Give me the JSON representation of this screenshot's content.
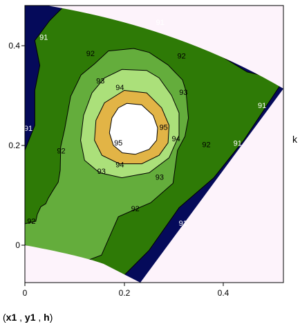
{
  "chart_data": {
    "type": "contour",
    "x_ticks": [
      "0",
      "0.2",
      "0.4"
    ],
    "y_ticks": [
      "0",
      "0.2",
      "0.4"
    ],
    "xlim": [
      0,
      0.52
    ],
    "ylim": [
      -0.075,
      0.48
    ],
    "side_label": "k",
    "caption": {
      "open": "(",
      "parts": [
        "x1",
        "y1",
        "h"
      ],
      "sep": " , ",
      "close": ")"
    },
    "colors": {
      "background": "#fdf3fb",
      "level_91": "#050a5a",
      "level_92": "#2e7a06",
      "level_93": "#64ad3c",
      "level_94": "#abe07a",
      "level_95": "#e2b446",
      "level_96": "#ffffff"
    },
    "regions": [
      {
        "level": 91,
        "points": [
          [
            0,
            0.48
          ],
          [
            0.52,
            0.48
          ],
          [
            0.52,
            -0.075
          ],
          [
            0,
            -0.075
          ]
        ]
      },
      {
        "level": 92,
        "points": [
          [
            0.08,
            0.48
          ],
          [
            0.2,
            0.48
          ],
          [
            0.36,
            0.4
          ],
          [
            0.447,
            0.347
          ],
          [
            0.52,
            0.33
          ],
          [
            0.44,
            0.21
          ],
          [
            0.38,
            0.135
          ],
          [
            0.31,
            0.075
          ],
          [
            0.25,
            -0.01
          ],
          [
            0.2,
            -0.06
          ],
          [
            0.1,
            -0.03
          ],
          [
            0,
            0.01
          ],
          [
            0,
            0.19
          ],
          [
            0.02,
            0.24
          ],
          [
            0.02,
            0.31
          ],
          [
            0.03,
            0.36
          ],
          [
            0.02,
            0.41
          ],
          [
            0.05,
            0.45
          ]
        ]
      },
      {
        "level": 93,
        "points": [
          [
            0.168,
            0.389
          ],
          [
            0.219,
            0.394
          ],
          [
            0.25,
            0.386
          ],
          [
            0.288,
            0.361
          ],
          [
            0.317,
            0.331
          ],
          [
            0.324,
            0.309
          ],
          [
            0.329,
            0.255
          ],
          [
            0.322,
            0.218
          ],
          [
            0.307,
            0.19
          ],
          [
            0.298,
            0.124
          ],
          [
            0.253,
            0.085
          ],
          [
            0.218,
            0.07
          ],
          [
            0.188,
            0.057
          ],
          [
            0.154,
            -0.02
          ],
          [
            0.13,
            -0.029
          ],
          [
            0.089,
            -0.032
          ],
          [
            0.0,
            0.0
          ],
          [
            0.0,
            0.043
          ],
          [
            0.022,
            0.048
          ],
          [
            0.025,
            0.062
          ],
          [
            0.032,
            0.077
          ],
          [
            0.042,
            0.083
          ],
          [
            0.047,
            0.094
          ],
          [
            0.058,
            0.112
          ],
          [
            0.067,
            0.126
          ],
          [
            0.071,
            0.15
          ],
          [
            0.072,
            0.197
          ],
          [
            0.08,
            0.232
          ],
          [
            0.092,
            0.298
          ],
          [
            0.113,
            0.341
          ],
          [
            0.141,
            0.364
          ]
        ]
      },
      {
        "level": 94,
        "points": [
          [
            0.195,
            0.352
          ],
          [
            0.245,
            0.35
          ],
          [
            0.27,
            0.335
          ],
          [
            0.295,
            0.3
          ],
          [
            0.31,
            0.265
          ],
          [
            0.31,
            0.22
          ],
          [
            0.29,
            0.175
          ],
          [
            0.25,
            0.145
          ],
          [
            0.195,
            0.135
          ],
          [
            0.15,
            0.145
          ],
          [
            0.12,
            0.17
          ],
          [
            0.112,
            0.21
          ],
          [
            0.118,
            0.26
          ],
          [
            0.135,
            0.305
          ],
          [
            0.16,
            0.335
          ]
        ]
      },
      {
        "level": 95,
        "points": [
          [
            0.2,
            0.31
          ],
          [
            0.245,
            0.305
          ],
          [
            0.275,
            0.275
          ],
          [
            0.29,
            0.24
          ],
          [
            0.288,
            0.205
          ],
          [
            0.27,
            0.18
          ],
          [
            0.235,
            0.163
          ],
          [
            0.19,
            0.163
          ],
          [
            0.155,
            0.18
          ],
          [
            0.14,
            0.21
          ],
          [
            0.143,
            0.25
          ],
          [
            0.16,
            0.285
          ]
        ]
      },
      {
        "level": 96,
        "points": [
          [
            0.205,
            0.284
          ],
          [
            0.235,
            0.281
          ],
          [
            0.258,
            0.26
          ],
          [
            0.267,
            0.235
          ],
          [
            0.265,
            0.21
          ],
          [
            0.25,
            0.192
          ],
          [
            0.222,
            0.182
          ],
          [
            0.196,
            0.185
          ],
          [
            0.178,
            0.2
          ],
          [
            0.17,
            0.225
          ],
          [
            0.175,
            0.255
          ],
          [
            0.188,
            0.275
          ]
        ]
      }
    ],
    "contour_labels": [
      {
        "text": "91",
        "x": 0.038,
        "y": 0.415,
        "color": "#ffffff"
      },
      {
        "text": "91",
        "x": 0.272,
        "y": 0.445,
        "color": "#ffffff"
      },
      {
        "text": "91",
        "x": 0.007,
        "y": 0.233,
        "color": "#ffffff"
      },
      {
        "text": "91",
        "x": 0.477,
        "y": 0.279,
        "color": "#ffffff"
      },
      {
        "text": "91",
        "x": 0.428,
        "y": 0.203,
        "color": "#ffffff"
      },
      {
        "text": "91",
        "x": 0.318,
        "y": 0.043,
        "color": "#ffffff"
      },
      {
        "text": "92",
        "x": 0.132,
        "y": 0.383,
        "color": "#000000"
      },
      {
        "text": "92",
        "x": 0.315,
        "y": 0.378,
        "color": "#000000"
      },
      {
        "text": "92",
        "x": 0.073,
        "y": 0.188,
        "color": "#000000"
      },
      {
        "text": "92",
        "x": 0.365,
        "y": 0.2,
        "color": "#000000"
      },
      {
        "text": "92",
        "x": 0.222,
        "y": 0.072,
        "color": "#000000"
      },
      {
        "text": "92",
        "x": 0.013,
        "y": 0.047,
        "color": "#000000"
      },
      {
        "text": "93",
        "x": 0.152,
        "y": 0.328,
        "color": "#000000"
      },
      {
        "text": "93",
        "x": 0.319,
        "y": 0.305,
        "color": "#000000"
      },
      {
        "text": "93",
        "x": 0.154,
        "y": 0.147,
        "color": "#000000"
      },
      {
        "text": "93",
        "x": 0.271,
        "y": 0.135,
        "color": "#000000"
      },
      {
        "text": "94",
        "x": 0.191,
        "y": 0.315,
        "color": "#000000"
      },
      {
        "text": "94",
        "x": 0.304,
        "y": 0.212,
        "color": "#000000"
      },
      {
        "text": "94",
        "x": 0.191,
        "y": 0.16,
        "color": "#000000"
      },
      {
        "text": "95",
        "x": 0.279,
        "y": 0.235,
        "color": "#000000"
      },
      {
        "text": "95",
        "x": 0.188,
        "y": 0.204,
        "color": "#000000"
      }
    ]
  }
}
